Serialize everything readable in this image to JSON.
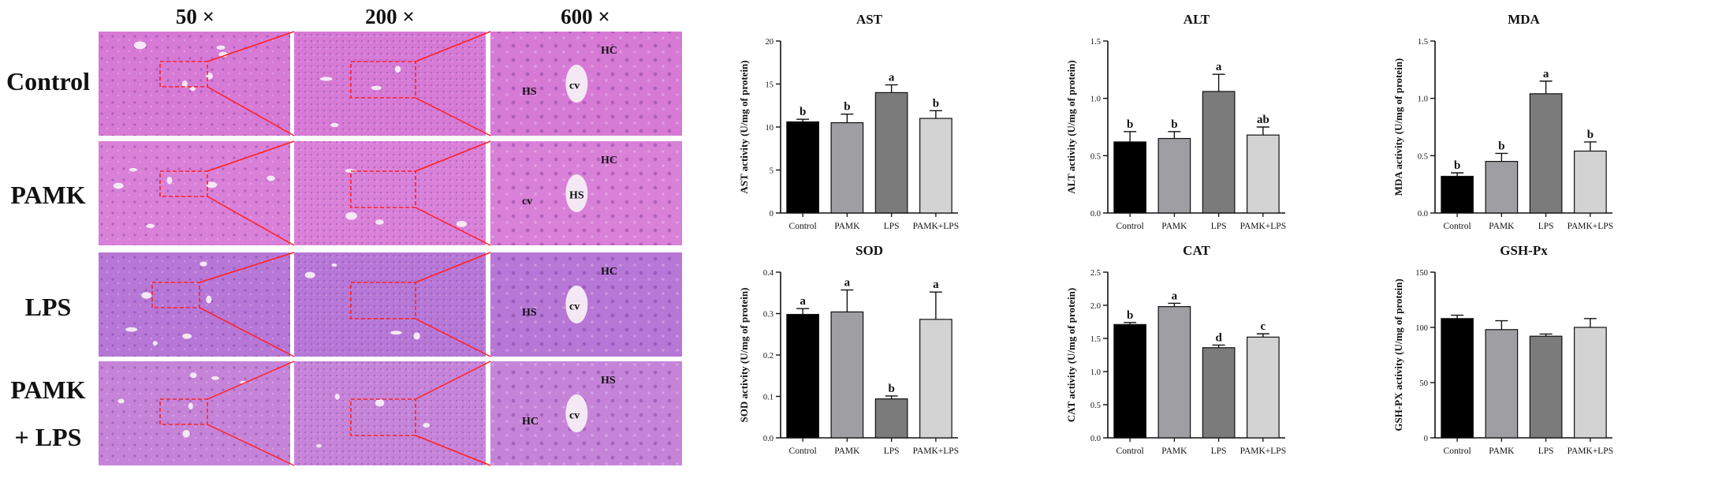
{
  "micro": {
    "columns": [
      "50 ×",
      "200 ×",
      "600 ×"
    ],
    "rows": [
      {
        "lines": [
          "Control"
        ]
      },
      {
        "lines": [
          "PAMK"
        ]
      },
      {
        "lines": [
          "LPS"
        ]
      },
      {
        "lines": [
          "PAMK",
          "+ LPS"
        ]
      }
    ],
    "tissue_colors": {
      "control": "#d67ad6",
      "pamk": "#d980d8",
      "lps": "#b777d6",
      "pamk_lps": "#c684d9"
    },
    "zoom_box_color": "#ff2020",
    "annotations": [
      {
        "row": 0,
        "labels": [
          "HC",
          "cv",
          "HS"
        ]
      },
      {
        "row": 1,
        "labels": [
          "HC",
          "HS",
          "cv"
        ]
      },
      {
        "row": 2,
        "labels": [
          "HC",
          "cv",
          "HS"
        ]
      },
      {
        "row": 3,
        "labels": [
          "HS",
          "cv",
          "HC"
        ]
      }
    ]
  },
  "chart_data": [
    {
      "type": "bar",
      "title": "AST",
      "ylabel": "AST activity (U/mg of protein)",
      "categories": [
        "Control",
        "PAMK",
        "LPS",
        "PAMK+LPS"
      ],
      "values": [
        10.6,
        10.5,
        14.0,
        11.0
      ],
      "errors": [
        0.3,
        1.0,
        0.9,
        0.9
      ],
      "letters": [
        "b",
        "b",
        "a",
        "b"
      ],
      "ylim": [
        0,
        20
      ],
      "yticks": [
        "0",
        "5",
        "10",
        "15",
        "20"
      ]
    },
    {
      "type": "bar",
      "title": "ALT",
      "ylabel": "ALT activity (U/mg of protein)",
      "categories": [
        "Control",
        "PAMK",
        "LPS",
        "PAMK+LPS"
      ],
      "values": [
        0.62,
        0.65,
        1.06,
        0.68
      ],
      "errors": [
        0.09,
        0.06,
        0.15,
        0.07
      ],
      "letters": [
        "b",
        "b",
        "a",
        "ab"
      ],
      "ylim": [
        0,
        1.5
      ],
      "yticks": [
        "0.0",
        "0.5",
        "1.0",
        "1.5"
      ]
    },
    {
      "type": "bar",
      "title": "MDA",
      "ylabel": "MDA activity (U/mg of protein)",
      "categories": [
        "Control",
        "PAMK",
        "LPS",
        "PAMK+LPS"
      ],
      "values": [
        0.32,
        0.45,
        1.04,
        0.54
      ],
      "errors": [
        0.03,
        0.07,
        0.11,
        0.08
      ],
      "letters": [
        "b",
        "b",
        "a",
        "b"
      ],
      "ylim": [
        0,
        1.5
      ],
      "yticks": [
        "0.0",
        "0.5",
        "1.0",
        "1.5"
      ]
    },
    {
      "type": "bar",
      "title": "SOD",
      "ylabel": "SOD activity (U/mg of protein)",
      "categories": [
        "Control",
        "PAMK",
        "LPS",
        "PAMK+LPS"
      ],
      "values": [
        0.298,
        0.304,
        0.094,
        0.286
      ],
      "errors": [
        0.014,
        0.053,
        0.007,
        0.066
      ],
      "letters": [
        "a",
        "a",
        "b",
        "a"
      ],
      "ylim": [
        0,
        0.4
      ],
      "yticks": [
        "0.0",
        "0.1",
        "0.2",
        "0.3",
        "0.4"
      ]
    },
    {
      "type": "bar",
      "title": "CAT",
      "ylabel": "CAT activity (U/mg of protein)",
      "categories": [
        "Control",
        "PAMK",
        "LPS",
        "PAMK+LPS"
      ],
      "values": [
        1.71,
        1.98,
        1.36,
        1.52
      ],
      "errors": [
        0.03,
        0.05,
        0.04,
        0.05
      ],
      "letters": [
        "b",
        "a",
        "d",
        "c"
      ],
      "ylim": [
        0,
        2.5
      ],
      "yticks": [
        "0.0",
        "0.5",
        "1.0",
        "1.5",
        "2.0",
        "2.5"
      ]
    },
    {
      "type": "bar",
      "title": "GSH-Px",
      "ylabel": "GSH-PX activity (U/mg of protein)",
      "categories": [
        "Control",
        "PAMK",
        "LPS",
        "PAMK+LPS"
      ],
      "values": [
        108,
        98,
        92,
        100
      ],
      "errors": [
        3,
        8,
        2,
        8
      ],
      "letters": [
        "",
        "",
        "",
        ""
      ],
      "ylim": [
        0,
        150
      ],
      "yticks": [
        "0",
        "50",
        "100",
        "150"
      ]
    }
  ],
  "bar_colors": [
    "#000000",
    "#9e9ea3",
    "#7b7b7b",
    "#d3d3d3"
  ]
}
